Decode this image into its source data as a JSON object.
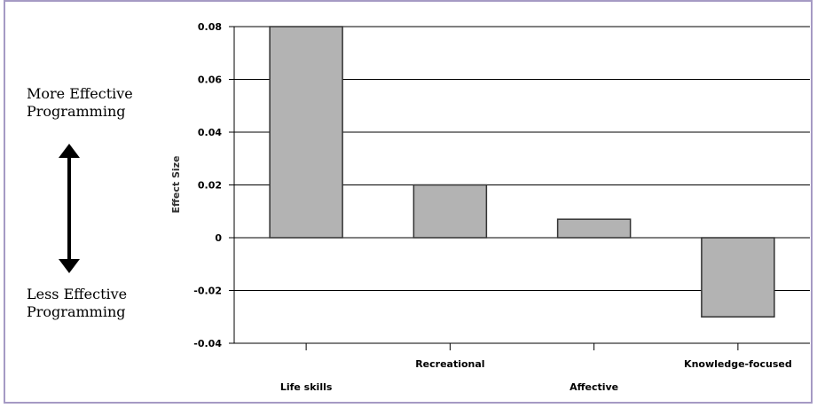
{
  "side_annotations": {
    "top_line1": "More Effective",
    "top_line2": "Programming",
    "bottom_line1": "Less Effective",
    "bottom_line2": "Programming",
    "arrow_icon": "double-headed-vertical-arrow-icon"
  },
  "colors": {
    "frame_border": "#a59ac4",
    "bar_fill": "#b3b3b3",
    "bar_stroke": "#333333",
    "gridline": "#000000"
  },
  "chart_data": {
    "type": "bar",
    "categories": [
      "Life skills",
      "Recreational",
      "Affective",
      "Knowledge-focused"
    ],
    "values": [
      0.08,
      0.02,
      0.007,
      -0.03
    ],
    "title": "",
    "xlabel": "",
    "ylabel": "Effect Size",
    "ylim": [
      -0.04,
      0.08
    ],
    "yticks": [
      "0.08",
      "0.06",
      "0.04",
      "0.02",
      "0",
      "-0.02",
      "-0.04"
    ],
    "grid": true,
    "legend": "none"
  }
}
